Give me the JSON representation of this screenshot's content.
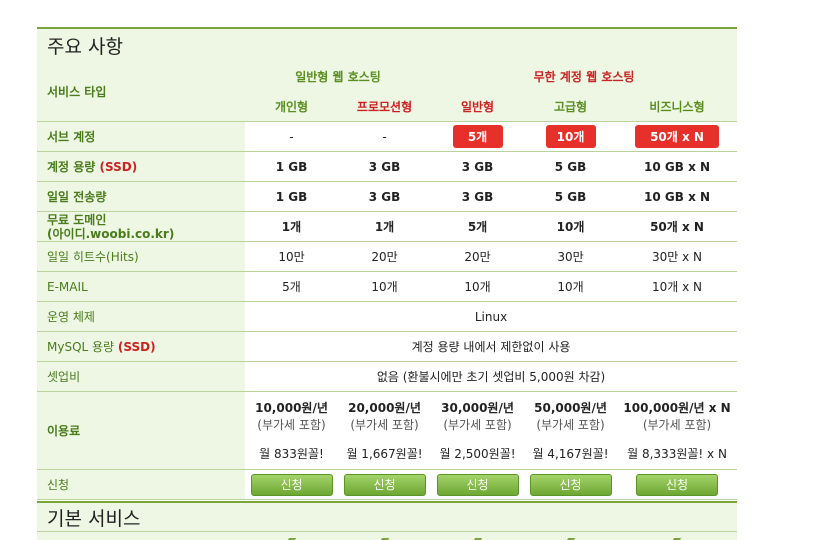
{
  "section1_title": "주요 사항",
  "section2_title": "기본 서비스",
  "header": {
    "label": "서비스 타입",
    "group_general": "일반형 웹 호스팅",
    "group_unlimited": "무한 계정 웹 호스팅",
    "plans": [
      "개인형",
      "프로모션형",
      "일반형",
      "고급형",
      "비즈니스형"
    ]
  },
  "rows": {
    "sub_accounts": {
      "label": "서브 계정",
      "values": [
        "-",
        "-",
        "5개",
        "10개",
        "50개 x N"
      ]
    },
    "storage": {
      "label_main": "계정 용량 ",
      "label_red": "(SSD)",
      "values": [
        "1 GB",
        "3 GB",
        "3 GB",
        "5 GB",
        "10 GB x N"
      ]
    },
    "transfer": {
      "label": "일일 전송량",
      "values": [
        "1 GB",
        "3 GB",
        "3 GB",
        "5 GB",
        "10 GB x N"
      ]
    },
    "domain": {
      "label_line1": "무료 도메인",
      "label_line2": "(아이디.woobi.co.kr)",
      "values": [
        "1개",
        "1개",
        "5개",
        "10개",
        "50개 x N"
      ]
    },
    "hits": {
      "label": "일일 히트수(Hits)",
      "values": [
        "10만",
        "20만",
        "20만",
        "30만",
        "30만 x N"
      ]
    },
    "email": {
      "label": "E-MAIL",
      "values": [
        "5개",
        "10개",
        "10개",
        "10개",
        "10개 x N"
      ]
    },
    "os": {
      "label": "운영 체제",
      "value": "Linux"
    },
    "mysql": {
      "label_main": "MySQL 용량 ",
      "label_red": "(SSD)",
      "value": "계정 용량 내에서 제한없이 사용"
    },
    "setup": {
      "label": "셋업비",
      "value": "없음 (환불시에만 초기 셋업비 5,000원 차감)"
    },
    "price": {
      "label": "이용료",
      "values": [
        "10,000원/년",
        "20,000원/년",
        "30,000원/년",
        "50,000원/년",
        "100,000원/년 x N"
      ],
      "vat": "(부가세 포함)",
      "monthly": [
        "월 833원꼴!",
        "월 1,667원꼴!",
        "월 2,500원꼴!",
        "월 4,167원꼴!",
        "월 8,333원꼴! x N"
      ]
    },
    "apply": {
      "label": "신청",
      "button": "신청"
    }
  }
}
